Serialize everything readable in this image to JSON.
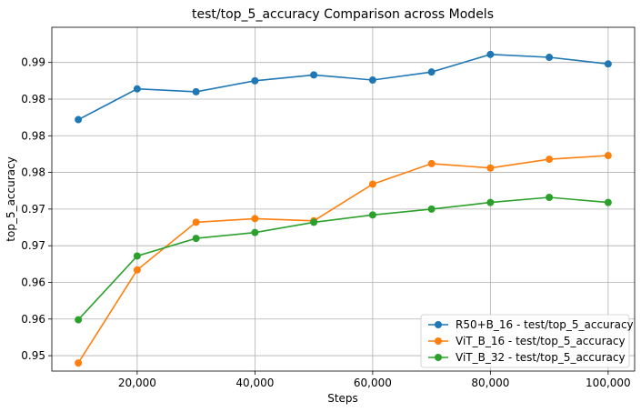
{
  "chart_data": {
    "type": "line",
    "title": "test/top_5_accuracy Comparison across Models",
    "xlabel": "Steps",
    "ylabel": "top_5_accuracy",
    "x": [
      10000,
      20000,
      30000,
      40000,
      50000,
      60000,
      70000,
      80000,
      90000,
      100000
    ],
    "xlim": [
      5500,
      104500
    ],
    "ylim": [
      0.9479,
      0.9948
    ],
    "x_ticks": [
      20000,
      40000,
      60000,
      80000,
      100000
    ],
    "x_tick_labels": [
      "20,000",
      "40,000",
      "60,000",
      "80,000",
      "100,000"
    ],
    "y_ticks": [
      0.95,
      0.955,
      0.96,
      0.965,
      0.97,
      0.975,
      0.98,
      0.985,
      0.99
    ],
    "y_tick_labels": [
      "0.95",
      "0.96",
      "0.96",
      "0.97",
      "0.97",
      "0.98",
      "0.98",
      "0.98",
      "0.99"
    ],
    "grid": true,
    "legend_position": "lower-right",
    "series": [
      {
        "name": "R50+B_16 - test/top_5_accuracy",
        "color": "#1f77b4",
        "values": [
          0.9822,
          0.9864,
          0.986,
          0.9875,
          0.9883,
          0.9876,
          0.9887,
          0.9911,
          0.9907,
          0.9898
        ]
      },
      {
        "name": "ViT_B_16 - test/top_5_accuracy",
        "color": "#ff7f0e",
        "values": [
          0.949,
          0.9617,
          0.9682,
          0.9687,
          0.9684,
          0.9734,
          0.9762,
          0.9756,
          0.9768,
          0.9773
        ]
      },
      {
        "name": "ViT_B_32 - test/top_5_accuracy",
        "color": "#2ca02c",
        "values": [
          0.9549,
          0.9636,
          0.966,
          0.9668,
          0.9682,
          0.9692,
          0.97,
          0.9709,
          0.9716,
          0.9709
        ]
      }
    ]
  }
}
